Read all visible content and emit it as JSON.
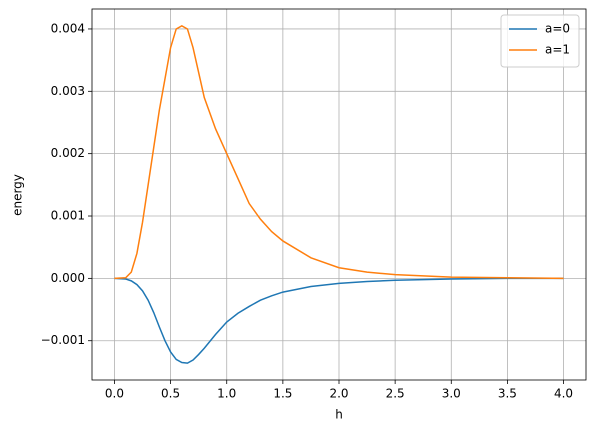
{
  "chart_data": {
    "type": "line",
    "xlabel": "h",
    "ylabel": "energy",
    "x": [
      0,
      0.1,
      0.15,
      0.2,
      0.25,
      0.3,
      0.35,
      0.4,
      0.45,
      0.5,
      0.55,
      0.6,
      0.65,
      0.7,
      0.75,
      0.8,
      0.9,
      1.0,
      1.1,
      1.2,
      1.3,
      1.4,
      1.5,
      1.75,
      2.0,
      2.25,
      2.5,
      3.0,
      3.5,
      4.0
    ],
    "series": [
      {
        "name": "a=0",
        "color": "#1f77b4",
        "values": [
          0,
          -1e-05,
          -4e-05,
          -0.0001,
          -0.0002,
          -0.00035,
          -0.00055,
          -0.00078,
          -0.001,
          -0.00118,
          -0.0013,
          -0.00135,
          -0.00136,
          -0.00131,
          -0.00122,
          -0.00112,
          -0.0009,
          -0.0007,
          -0.00056,
          -0.00045,
          -0.00035,
          -0.00028,
          -0.00022,
          -0.00013,
          -8e-05,
          -5e-05,
          -3e-05,
          -1e-05,
          0,
          0
        ]
      },
      {
        "name": "a=1",
        "color": "#ff7f0e",
        "values": [
          0,
          1e-05,
          0.0001,
          0.0004,
          0.0009,
          0.0015,
          0.0021,
          0.0027,
          0.0032,
          0.0037,
          0.004,
          0.00405,
          0.004,
          0.0037,
          0.0033,
          0.0029,
          0.0024,
          0.002,
          0.0016,
          0.0012,
          0.00095,
          0.00075,
          0.0006,
          0.00033,
          0.00017,
          0.0001,
          6e-05,
          2e-05,
          1e-05,
          0
        ]
      }
    ],
    "xlim": [
      -0.2,
      4.2
    ],
    "ylim": [
      -0.00163,
      0.00432
    ],
    "xticks": [
      {
        "value": 0,
        "label": "0.0"
      },
      {
        "value": 0.5,
        "label": "0.5"
      },
      {
        "value": 1,
        "label": "1.0"
      },
      {
        "value": 1.5,
        "label": "1.5"
      },
      {
        "value": 2,
        "label": "2.0"
      },
      {
        "value": 2.5,
        "label": "2.5"
      },
      {
        "value": 3,
        "label": "3.0"
      },
      {
        "value": 3.5,
        "label": "3.5"
      },
      {
        "value": 4,
        "label": "4.0"
      }
    ],
    "yticks": [
      {
        "value": -0.001,
        "label": "−0.001"
      },
      {
        "value": 0,
        "label": "0.000"
      },
      {
        "value": 0.001,
        "label": "0.001"
      },
      {
        "value": 0.002,
        "label": "0.002"
      },
      {
        "value": 0.003,
        "label": "0.003"
      },
      {
        "value": 0.004,
        "label": "0.004"
      }
    ],
    "grid": true,
    "legend": "upper-right"
  }
}
